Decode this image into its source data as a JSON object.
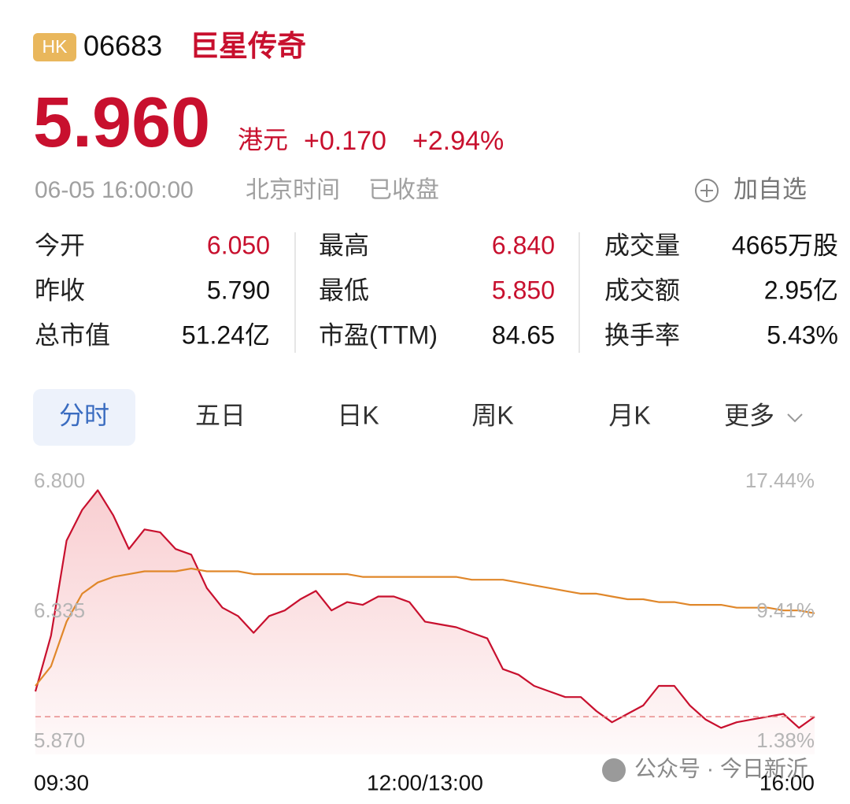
{
  "header": {
    "market": "HK",
    "code": "06683",
    "name": "巨星传奇"
  },
  "quote": {
    "price": "5.960",
    "currency": "港元",
    "change": "+0.170",
    "change_pct": "+2.94%"
  },
  "status": {
    "datetime": "06-05 16:00:00",
    "timezone": "北京时间",
    "state": "已收盘",
    "watchlist_button": "加自选"
  },
  "stats": [
    [
      {
        "label": "今开",
        "value": "6.050",
        "color": "#c8102e"
      },
      {
        "label": "最高",
        "value": "6.840",
        "color": "#c8102e"
      },
      {
        "label": "成交量",
        "value": "4665万股"
      }
    ],
    [
      {
        "label": "昨收",
        "value": "5.790"
      },
      {
        "label": "最低",
        "value": "5.850",
        "color": "#c8102e"
      },
      {
        "label": "成交额",
        "value": "2.95亿"
      }
    ],
    [
      {
        "label": "总市值",
        "value": "51.24亿"
      },
      {
        "label": "市盈(TTM)",
        "value": "84.65"
      },
      {
        "label": "换手率",
        "value": "5.43%"
      }
    ]
  ],
  "tabs": {
    "items": [
      "分时",
      "五日",
      "日K",
      "周K",
      "月K",
      "更多"
    ],
    "selected": 0
  },
  "chart_data": {
    "type": "line",
    "x_labels": [
      "09:30",
      "12:00/13:00",
      "16:00"
    ],
    "series": [
      {
        "color": "#c8102e",
        "area": true,
        "values": [
          6.05,
          6.25,
          6.59,
          6.7,
          6.77,
          6.68,
          6.56,
          6.63,
          6.62,
          6.56,
          6.54,
          6.42,
          6.35,
          6.32,
          6.26,
          6.32,
          6.34,
          6.38,
          6.41,
          6.34,
          6.37,
          6.36,
          6.39,
          6.39,
          6.37,
          6.3,
          6.29,
          6.28,
          6.26,
          6.24,
          6.13,
          6.11,
          6.07,
          6.05,
          6.03,
          6.03,
          5.98,
          5.94,
          5.97,
          6.0,
          6.07,
          6.07,
          6.0,
          5.95,
          5.92,
          5.94,
          5.95,
          5.96,
          5.97,
          5.92,
          5.96
        ]
      },
      {
        "color": "#e0872a",
        "values": [
          6.07,
          6.14,
          6.3,
          6.4,
          6.44,
          6.46,
          6.47,
          6.48,
          6.48,
          6.48,
          6.49,
          6.48,
          6.48,
          6.48,
          6.47,
          6.47,
          6.47,
          6.47,
          6.47,
          6.47,
          6.47,
          6.46,
          6.46,
          6.46,
          6.46,
          6.46,
          6.46,
          6.46,
          6.45,
          6.45,
          6.45,
          6.44,
          6.43,
          6.42,
          6.41,
          6.4,
          6.4,
          6.39,
          6.38,
          6.38,
          6.37,
          6.37,
          6.36,
          6.36,
          6.36,
          6.35,
          6.35,
          6.35,
          6.34,
          6.34,
          6.33
        ]
      }
    ],
    "ylim": [
      5.87,
      6.8
    ],
    "yticks": [
      {
        "value": 6.8,
        "label": "6.800"
      },
      {
        "value": 6.335,
        "label": "6.335"
      },
      {
        "value": 5.87,
        "label": "5.870"
      }
    ],
    "y2lim": [
      1.38,
      17.44
    ],
    "y2ticks": [
      {
        "value": 17.44,
        "label": "17.44%"
      },
      {
        "value": 9.41,
        "label": "9.41%"
      },
      {
        "value": 1.38,
        "label": "1.38%"
      }
    ],
    "ref_line": 5.96
  },
  "watermark": "公众号 · 今日新沂"
}
